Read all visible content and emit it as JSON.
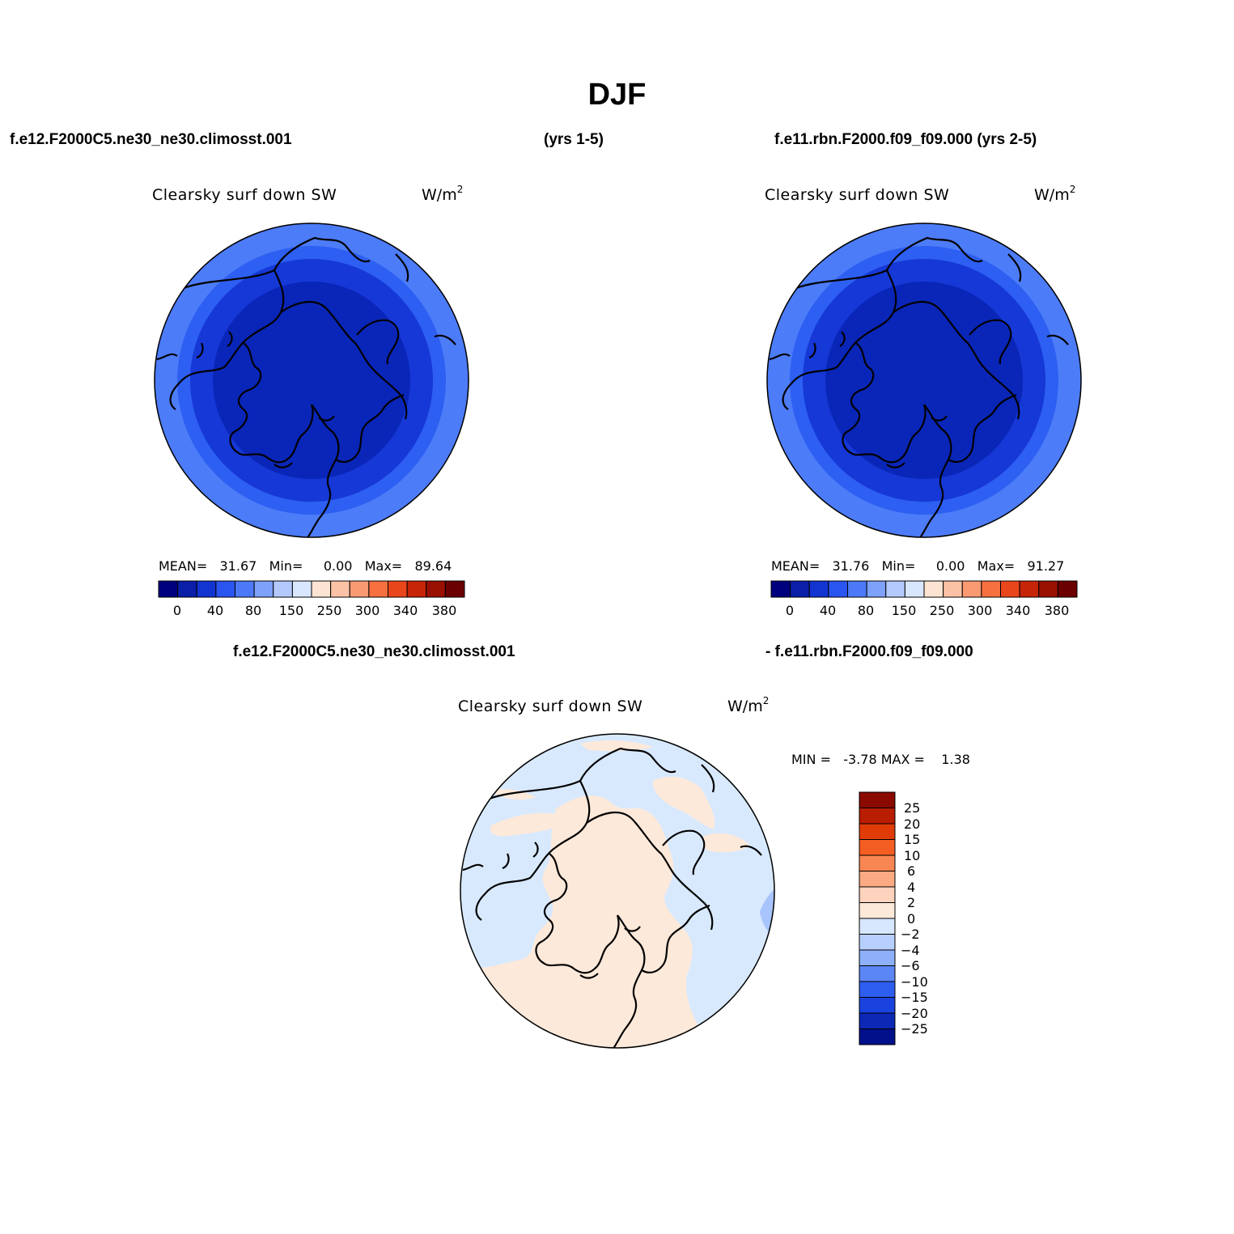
{
  "title": "DJF",
  "header": {
    "case1": "f.e12.F2000C5.ne30_ne30.climosst.001",
    "years1": "(yrs 1-5)",
    "case2": "f.e11.rbn.F2000.f09_f09.000 (yrs 2-5)"
  },
  "diff_header": {
    "case1": "f.e12.F2000C5.ne30_ne30.climosst.001",
    "case2": "- f.e11.rbn.F2000.f09_f09.000"
  },
  "panels": [
    {
      "variable": "Clearsky surf down SW",
      "units": "W/m",
      "units_sup": "2",
      "mean_label": "MEAN=",
      "mean": "31.67",
      "min_label": "Min=",
      "min": "0.00",
      "max_label": "Max=",
      "max": "89.64"
    },
    {
      "variable": "Clearsky surf down SW",
      "units": "W/m",
      "units_sup": "2",
      "mean_label": "MEAN=",
      "mean": "31.76",
      "min_label": "Min=",
      "min": "0.00",
      "max_label": "Max=",
      "max": "91.27"
    }
  ],
  "diff_panel": {
    "variable": "Clearsky surf down SW",
    "units": "W/m",
    "units_sup": "2",
    "min_label": "MIN =",
    "min": "-3.78",
    "max_label": "MAX =",
    "max": "1.38"
  },
  "colorbar": {
    "colors": [
      "#00007f",
      "#0a1ea8",
      "#1235d2",
      "#2a55f0",
      "#4b79f8",
      "#7ea1fb",
      "#b3c9fd",
      "#d8e6fe",
      "#fde4d2",
      "#fbc2a5",
      "#fa9a73",
      "#f7703f",
      "#ea461b",
      "#c72508",
      "#9a1000",
      "#6b0000"
    ],
    "tick_labels": [
      "0",
      "40",
      "80",
      "150",
      "250",
      "300",
      "340",
      "380"
    ]
  },
  "diff_colorbar": {
    "colors_top_to_bottom": [
      "#8b0a00",
      "#b91d02",
      "#e03c07",
      "#f55e22",
      "#f88653",
      "#fbaa83",
      "#fdd3bd",
      "#fde9da",
      "#d6e7fe",
      "#b8cffd",
      "#8eb0fb",
      "#5b86f6",
      "#2e5ef0",
      "#1a42de",
      "#0c28b4",
      "#000f8a"
    ],
    "tick_labels_top_to_bottom": [
      "25",
      "20",
      "15",
      "10",
      "6",
      "4",
      "2",
      "0",
      "−2",
      "−4",
      "−6",
      "−10",
      "−15",
      "−20",
      "−25"
    ]
  },
  "map_colors": {
    "ring1": "#4d7cf8",
    "ring2": "#2d5ff2",
    "ring3": "#1638d6",
    "ring4": "#0a26b8",
    "diff_blue": "#d8e9fe",
    "diff_peach": "#fde9da",
    "diff_edge": "#a8c4fc"
  }
}
